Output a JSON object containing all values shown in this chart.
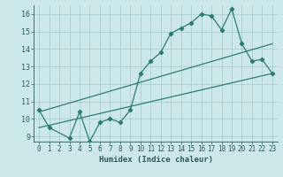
{
  "title": "",
  "xlabel": "Humidex (Indice chaleur)",
  "ylabel": "",
  "bg_color": "#cce8e8",
  "line_color": "#2d7d6e",
  "grid_color": "#aacfcf",
  "xlim": [
    -0.5,
    23.5
  ],
  "ylim": [
    8.7,
    16.5
  ],
  "yticks": [
    9,
    10,
    11,
    12,
    13,
    14,
    15,
    16
  ],
  "xticks": [
    0,
    1,
    2,
    3,
    4,
    5,
    6,
    7,
    8,
    9,
    10,
    11,
    12,
    13,
    14,
    15,
    16,
    17,
    18,
    19,
    20,
    21,
    22,
    23
  ],
  "line1_x": [
    0,
    1,
    3,
    4,
    5,
    6,
    7,
    8,
    9,
    10,
    11,
    12,
    13,
    14,
    15,
    16,
    17,
    18,
    19,
    20,
    21,
    22,
    23
  ],
  "line1_y": [
    10.5,
    9.5,
    8.9,
    10.4,
    8.7,
    9.8,
    10.0,
    9.8,
    10.5,
    12.6,
    13.3,
    13.8,
    14.9,
    15.2,
    15.5,
    16.0,
    15.9,
    15.1,
    16.3,
    14.3,
    13.3,
    13.4,
    12.6
  ],
  "line2_x": [
    0,
    23
  ],
  "line2_y": [
    9.5,
    12.6
  ],
  "line3_x": [
    0,
    23
  ],
  "line3_y": [
    10.4,
    14.3
  ],
  "marker": "D",
  "marker_size": 2.2,
  "linewidth": 0.9
}
